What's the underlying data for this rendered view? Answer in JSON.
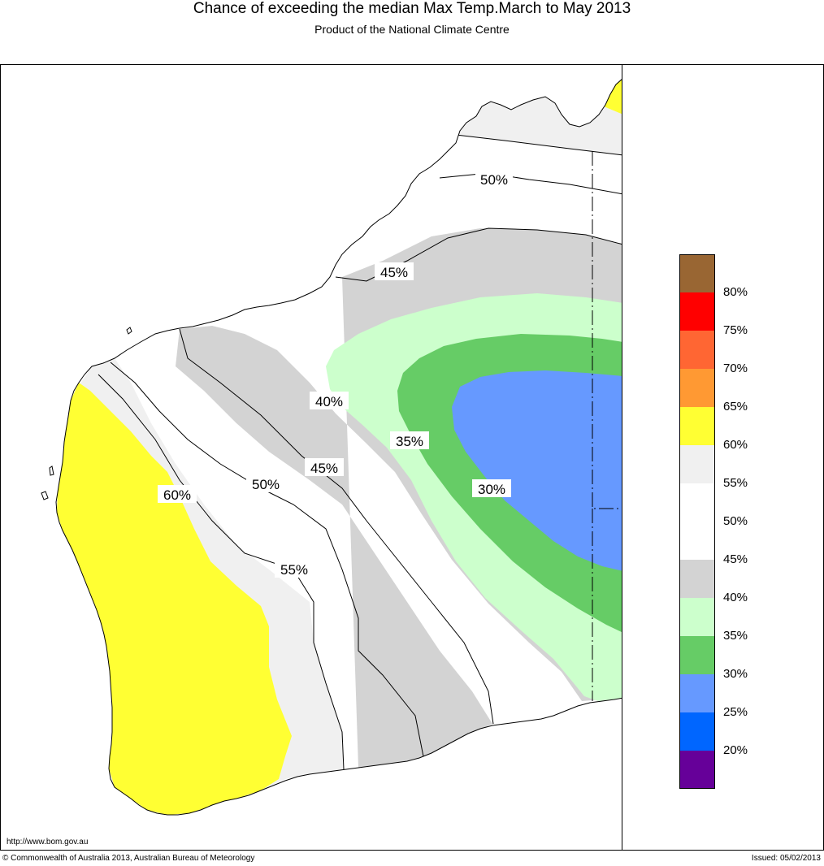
{
  "header": {
    "title": "Chance of exceeding the median Max Temp.March to May 2013",
    "subtitle": "Product of the National Climate Centre"
  },
  "footer": {
    "url": "http://www.bom.gov.au",
    "copyright": "© Commonwealth of Australia 2013, Australian Bureau of Meteorology",
    "issued": "Issued: 05/02/2013"
  },
  "map": {
    "region": "Western Australia",
    "contour_labels": {
      "north_50": "50%",
      "north_45": "45%",
      "central_40": "40%",
      "band_35": "35%",
      "center_30": "30%",
      "south_45": "45%",
      "south_50": "50%",
      "south_55": "55%",
      "west_60": "60%"
    },
    "fill_colors": {
      "above_60": "#ffff33",
      "55_60": "#f0f0f0",
      "50_55": "#ffffff",
      "45_50": "#ffffff",
      "40_45": "#d3d3d3",
      "35_40": "#ccffcc",
      "30_35": "#66cc66",
      "25_30": "#6699ff"
    }
  },
  "legend": {
    "items": [
      {
        "color": "#996633",
        "label": "80%"
      },
      {
        "color": "#ff0000",
        "label": "75%"
      },
      {
        "color": "#ff6633",
        "label": "70%"
      },
      {
        "color": "#ff9933",
        "label": "65%"
      },
      {
        "color": "#ffff33",
        "label": "60%"
      },
      {
        "color": "#f0f0f0",
        "label": "55%"
      },
      {
        "color": "#ffffff",
        "label": "50%"
      },
      {
        "color": "#ffffff",
        "label": "45%"
      },
      {
        "color": "#d3d3d3",
        "label": "40%"
      },
      {
        "color": "#ccffcc",
        "label": "35%"
      },
      {
        "color": "#66cc66",
        "label": "30%"
      },
      {
        "color": "#6699ff",
        "label": "25%"
      },
      {
        "color": "#0066ff",
        "label": "20%"
      },
      {
        "color": "#660099",
        "label": ""
      }
    ]
  }
}
